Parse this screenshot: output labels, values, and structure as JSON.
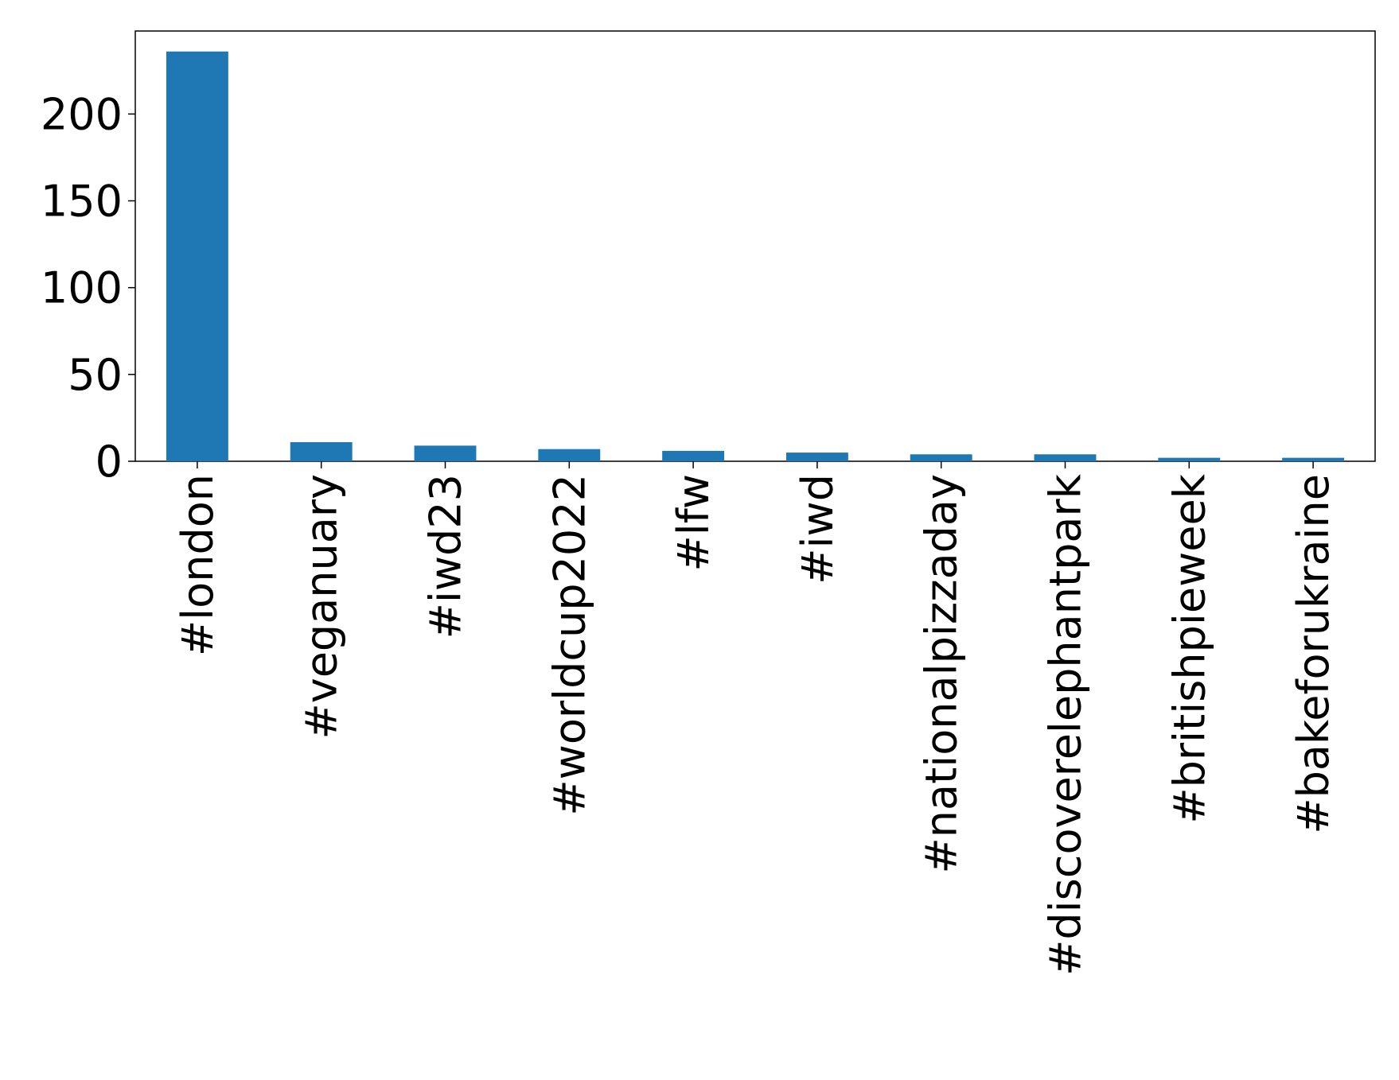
{
  "chart_data": {
    "type": "bar",
    "categories": [
      "#london",
      "#veganuary",
      "#iwd23",
      "#worldcup2022",
      "#lfw",
      "#iwd",
      "#nationalpizzaday",
      "#discoverelephantpark",
      "#britishpieweek",
      "#bakeforukraine"
    ],
    "values": [
      236,
      11,
      9,
      7,
      6,
      5,
      4,
      4,
      2,
      2
    ],
    "color": "#1f77b4",
    "ylim": [
      0,
      247.8
    ],
    "yticks": [
      0,
      50,
      100,
      150,
      200
    ],
    "grid": false
  }
}
